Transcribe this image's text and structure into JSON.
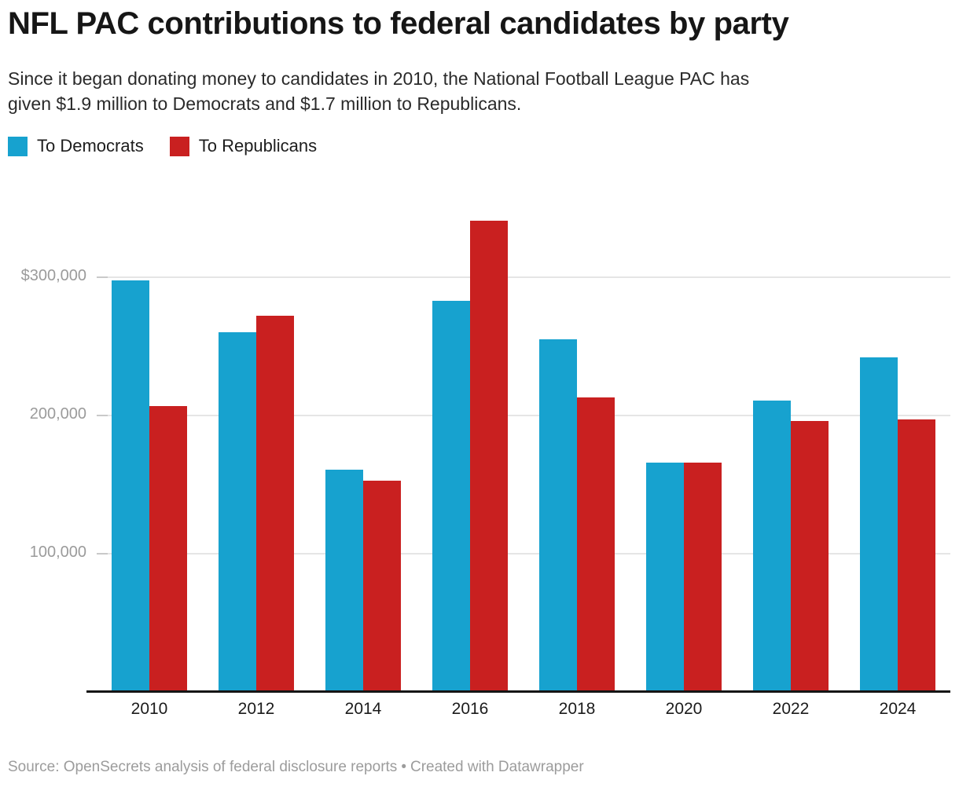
{
  "header": {
    "title": "NFL PAC contributions to federal candidates by party",
    "subtitle_lines": [
      "Since it began donating money to candidates in 2010, the National Football League PAC has",
      "given $1.9 million to Democrats and $1.7 million to Republicans."
    ]
  },
  "legend": {
    "items": [
      {
        "label": "To Democrats",
        "color": "#17a2cf"
      },
      {
        "label": "To Republicans",
        "color": "#c92020"
      }
    ]
  },
  "chart_data": {
    "type": "bar",
    "title": "NFL PAC contributions to federal candidates by party",
    "categories": [
      "2010",
      "2012",
      "2014",
      "2016",
      "2018",
      "2020",
      "2022",
      "2024"
    ],
    "series": [
      {
        "name": "To Democrats",
        "color": "#17a2cf",
        "values": [
          298000,
          260000,
          161000,
          283000,
          255000,
          166000,
          211000,
          242000
        ]
      },
      {
        "name": "To Republicans",
        "color": "#c92020",
        "values": [
          207000,
          272000,
          153000,
          341000,
          213000,
          166000,
          196000,
          197000
        ]
      }
    ],
    "xlabel": "",
    "ylabel": "",
    "ylim": [
      0,
      360000
    ],
    "yticks": [
      {
        "value": 300000,
        "label": "$300,000"
      },
      {
        "value": 200000,
        "label": "200,000"
      },
      {
        "value": 100000,
        "label": "100,000"
      }
    ],
    "grid": "horizontal",
    "legend_position": "top-left"
  },
  "footer": {
    "source": "Source: OpenSecrets analysis of federal disclosure reports",
    "separator": "•",
    "credit": "Created with Datawrapper"
  }
}
